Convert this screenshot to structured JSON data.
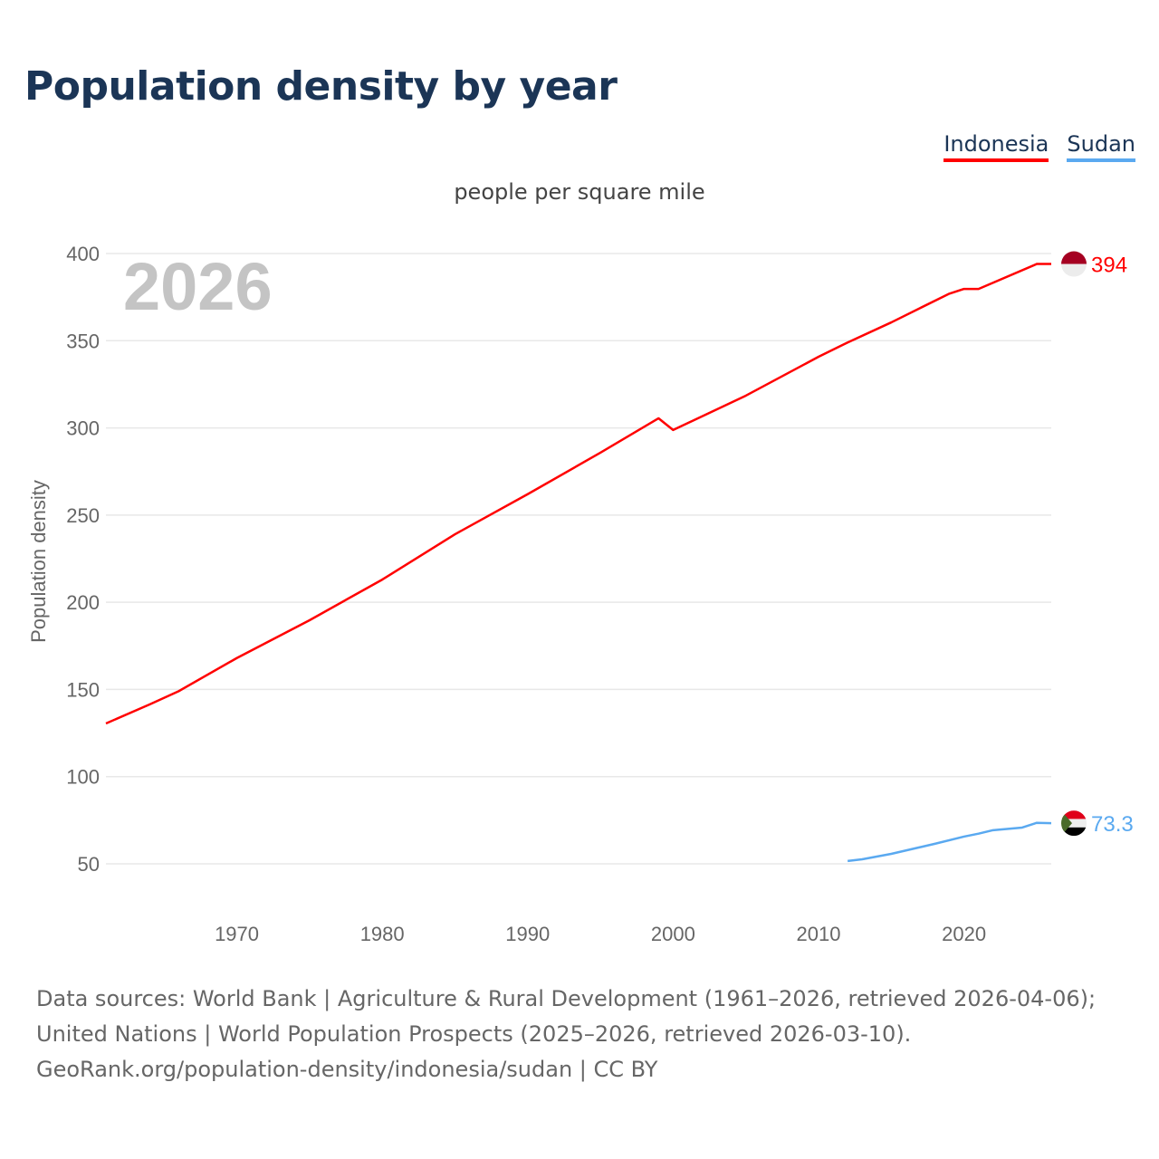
{
  "title": "Population density by year",
  "footer": {
    "sources": "Data sources: World Bank | Agriculture & Rural Development (1961–2026, retrieved 2026-04-06); United Nations | World Population Prospects (2025–2026, retrieved 2026-03-10).",
    "credit": "GeoRank.org/population-density/indonesia/sudan | CC BY"
  },
  "chart_data": {
    "type": "line",
    "title": "Population density by year",
    "subtitle": "people per square mile",
    "ylabel": "Population density",
    "xlabel": "",
    "year_watermark": "2026",
    "xlim": [
      1961,
      2026
    ],
    "ylim": [
      50,
      400
    ],
    "x_ticks": [
      1970,
      1980,
      1990,
      2000,
      2010,
      2020
    ],
    "y_ticks": [
      50,
      100,
      150,
      200,
      250,
      300,
      350,
      400
    ],
    "grid": true,
    "legend_position": "top-right",
    "series": [
      {
        "name": "Indonesia",
        "color": "#ff0000",
        "end_label": "394",
        "flag": "indonesia-flag",
        "x": [
          1961,
          1964,
          1966,
          1970,
          1975,
          1980,
          1985,
          1990,
          1995,
          1999,
          2000,
          2005,
          2010,
          2012,
          2015,
          2017,
          2019,
          2020,
          2021,
          2025,
          2026
        ],
        "y": [
          130.5,
          141.4,
          149,
          168,
          189.7,
          213,
          239,
          262,
          285.8,
          305.5,
          298.8,
          318.5,
          340.8,
          349,
          360.5,
          368.8,
          377,
          379.7,
          379.7,
          394,
          394
        ]
      },
      {
        "name": "Sudan",
        "color": "#5aa9f0",
        "end_label": "73.3",
        "flag": "sudan-flag",
        "x": [
          2012,
          2013,
          2015,
          2018,
          2020,
          2021,
          2022,
          2024,
          2025,
          2026
        ],
        "y": [
          51.6,
          52.6,
          55.7,
          61.5,
          65.6,
          67.3,
          69.3,
          70.8,
          73.5,
          73.3
        ]
      }
    ]
  }
}
